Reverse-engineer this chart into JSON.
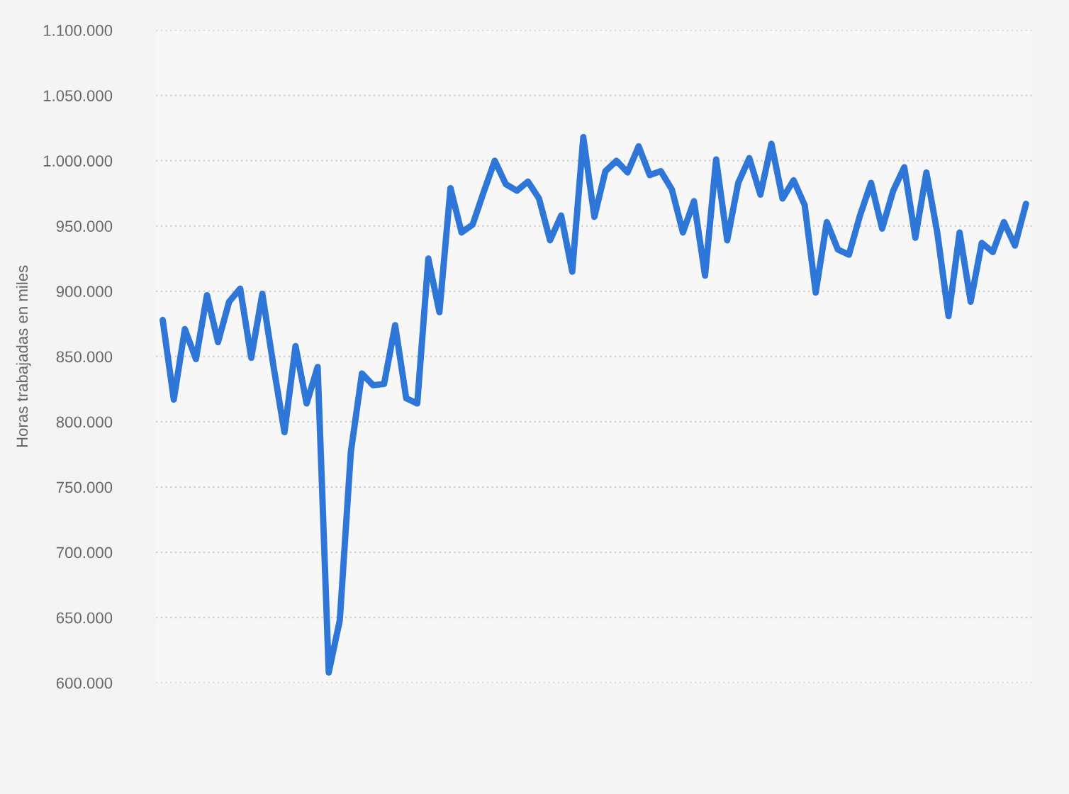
{
  "chart_data": {
    "type": "line",
    "ylabel": "Horas trabajadas en miles",
    "categories": [
      null,
      null,
      null,
      null,
      null,
      null,
      null,
      null,
      null,
      null,
      null,
      null,
      null,
      null,
      null,
      null,
      null,
      null,
      null,
      null,
      null,
      null,
      null,
      null,
      null,
      null,
      null,
      null,
      null,
      null,
      null,
      null,
      null,
      null,
      null,
      null,
      null,
      null,
      null,
      null,
      null,
      null,
      null,
      null,
      null,
      null,
      null,
      null,
      null,
      null,
      null,
      null,
      null,
      null,
      null,
      null,
      null,
      null,
      null,
      null,
      null,
      null,
      null,
      null,
      null,
      null,
      null,
      null,
      null,
      null,
      null,
      null,
      null,
      null,
      null,
      null,
      null,
      null,
      null
    ],
    "series": [
      {
        "color": "#2f76d9",
        "values": [
          878000,
          817000,
          871000,
          848000,
          897000,
          861000,
          892000,
          902000,
          849000,
          898000,
          843000,
          792000,
          858000,
          814000,
          842000,
          608000,
          648000,
          777000,
          837000,
          828000,
          829000,
          874000,
          818000,
          814000,
          925000,
          884000,
          979000,
          945000,
          951000,
          976000,
          1000000,
          982000,
          977000,
          984000,
          971000,
          939000,
          958000,
          915000,
          1018000,
          957000,
          992000,
          1000000,
          991000,
          1011000,
          989000,
          992000,
          978000,
          945000,
          969000,
          912000,
          1001000,
          939000,
          983000,
          1002000,
          974000,
          1013000,
          971000,
          985000,
          966000,
          899000,
          953000,
          932000,
          928000,
          958000,
          983000,
          948000,
          977000,
          995000,
          941000,
          991000,
          944000,
          881000,
          945000,
          892000,
          937000,
          930000,
          953000,
          935000,
          967000
        ]
      }
    ],
    "ylim": [
      600000,
      1100000
    ],
    "yticks": [
      {
        "value": 600000,
        "label": "600.000"
      },
      {
        "value": 650000,
        "label": "650.000"
      },
      {
        "value": 700000,
        "label": "700.000"
      },
      {
        "value": 750000,
        "label": "750.000"
      },
      {
        "value": 800000,
        "label": "800.000"
      },
      {
        "value": 850000,
        "label": "850.000"
      },
      {
        "value": 900000,
        "label": "900.000"
      },
      {
        "value": 950000,
        "label": "950.000"
      },
      {
        "value": 1000000,
        "label": "1.000.000"
      },
      {
        "value": 1050000,
        "label": "1.050.000"
      },
      {
        "value": 1100000,
        "label": "1.100.000"
      }
    ],
    "grid": "y",
    "line_style": "solid",
    "marker": "none"
  }
}
